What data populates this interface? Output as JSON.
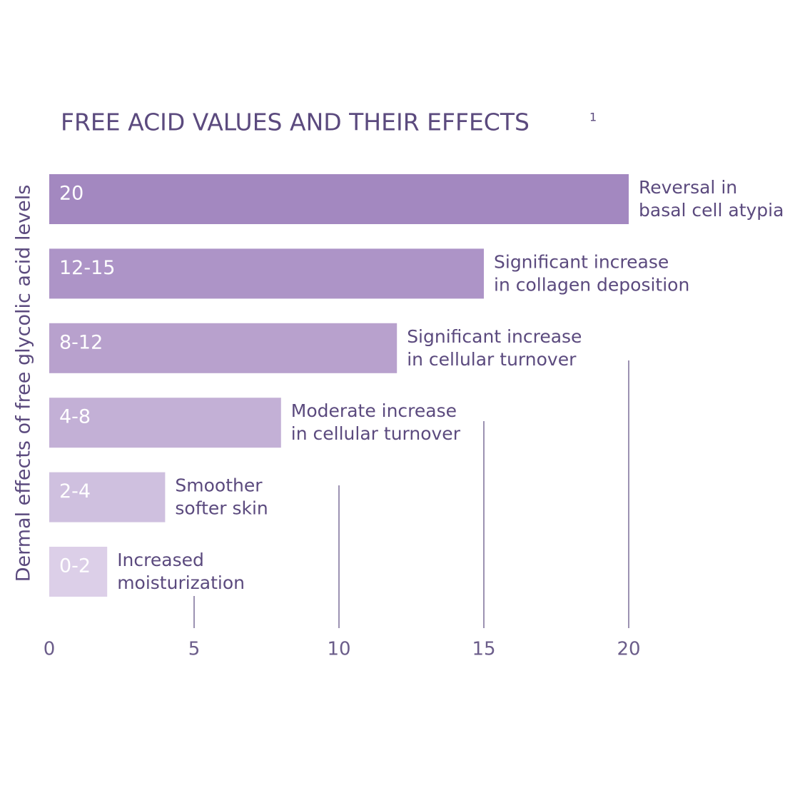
{
  "chart_data": {
    "type": "bar",
    "orientation": "horizontal",
    "title": "FREE ACID VALUES AND THEIR EFFECTS",
    "title_superscript": "1",
    "y_label": "Dermal effects of free glycolic acid levels",
    "categories": [
      "20",
      "12-15",
      "8-12",
      "4-8",
      "2-4",
      "0-2"
    ],
    "values": [
      20,
      15,
      12,
      8,
      4,
      2
    ],
    "colors": [
      "#a388c0",
      "#ad94c7",
      "#b8a1cd",
      "#c3b0d6",
      "#cfc0df",
      "#dccfe8"
    ],
    "annotations": [
      [
        "Reversal in",
        "basal cell atypia"
      ],
      [
        "Significant increase",
        "in collagen deposition"
      ],
      [
        "Significant increase",
        "in cellular turnover"
      ],
      [
        "Moderate increase",
        "in cellular turnover"
      ],
      [
        "Smoother",
        "softer skin"
      ],
      [
        "Increased",
        "moisturization"
      ]
    ],
    "xlim": [
      0,
      20
    ],
    "xticks": [
      0,
      5,
      10,
      15,
      20
    ],
    "grid": true
  }
}
